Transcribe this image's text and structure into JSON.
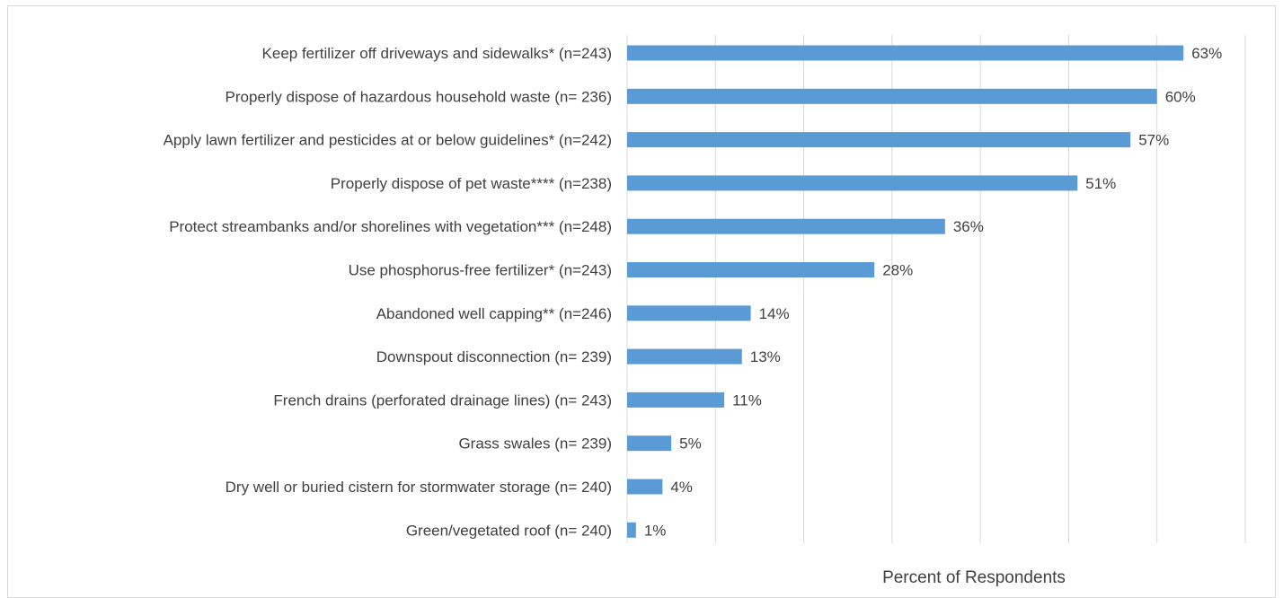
{
  "chart_data": {
    "type": "bar",
    "orientation": "horizontal",
    "categories": [
      "Keep fertilizer off driveways and sidewalks* (n=243)",
      "Properly dispose of hazardous household waste (n= 236)",
      "Apply lawn fertilizer and pesticides at or below guidelines* (n=242)",
      "Properly dispose of pet waste**** (n=238)",
      "Protect streambanks and/or shorelines with vegetation*** (n=248)",
      "Use phosphorus-free fertilizer* (n=243)",
      "Abandoned well capping** (n=246)",
      "Downspout disconnection (n= 239)",
      "French drains (perforated drainage lines) (n= 243)",
      "Grass swales (n= 239)",
      "Dry well or buried cistern for stormwater storage (n= 240)",
      "Green/vegetated roof (n= 240)"
    ],
    "values": [
      63,
      60,
      57,
      51,
      36,
      28,
      14,
      13,
      11,
      5,
      4,
      1
    ],
    "value_labels": [
      "63%",
      "60%",
      "57%",
      "51%",
      "36%",
      "28%",
      "14%",
      "13%",
      "11%",
      "5%",
      "4%",
      "1%"
    ],
    "xlabel": "Percent of Respondents",
    "ylabel": "",
    "title": "",
    "xlim": [
      0,
      70
    ],
    "grid": "vertical",
    "legend": "none",
    "bar_color": "#5b9bd5"
  }
}
